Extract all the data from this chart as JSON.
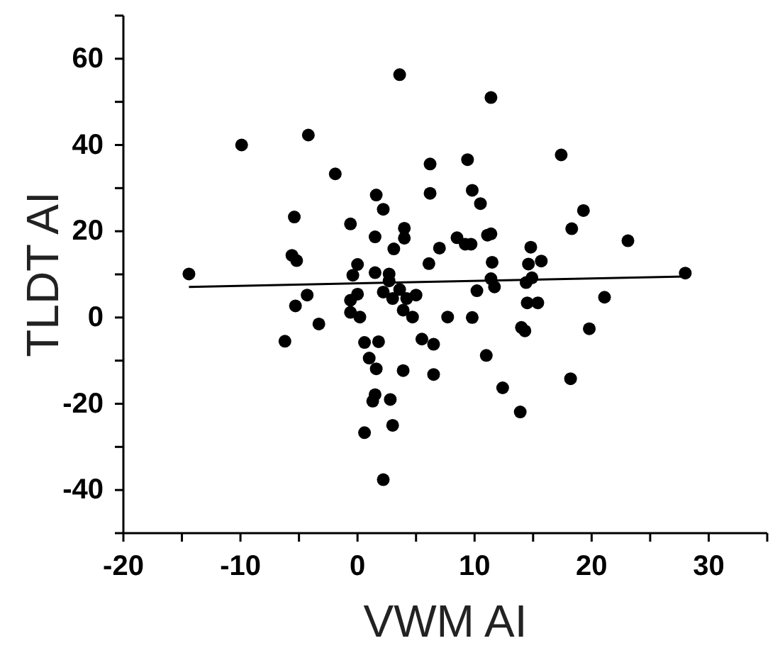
{
  "chart_data": {
    "type": "scatter",
    "xlabel": "VWM AI",
    "ylabel": "TLDT AI",
    "xlim": [
      -20,
      35
    ],
    "ylim": [
      -50,
      70
    ],
    "xticks": [
      -20,
      {
        "value": -15,
        "label": null
      },
      -10,
      {
        "value": -5,
        "label": null
      },
      0,
      {
        "value": 5,
        "label": null
      },
      10,
      {
        "value": 15,
        "label": null
      },
      20,
      {
        "value": 25,
        "label": null
      },
      30,
      {
        "value": 35,
        "label": null
      }
    ],
    "yticks": [
      {
        "value": -50,
        "label": null
      },
      -40,
      {
        "value": -30,
        "label": null
      },
      -20,
      {
        "value": -10,
        "label": null
      },
      0,
      {
        "value": 10,
        "label": null
      },
      20,
      {
        "value": 30,
        "label": null
      },
      40,
      {
        "value": 50,
        "label": null
      },
      60,
      {
        "value": 70,
        "label": null
      }
    ],
    "grid": false,
    "series": [
      {
        "marker": "circle",
        "color": "#000000",
        "x": [
          -14.4,
          -9.9,
          -4.2,
          -1.9,
          3.6,
          6.2,
          6.2,
          1.6,
          2.2,
          -5.4,
          -0.6,
          4.0,
          4.0,
          1.5,
          3.1,
          7.0,
          -5.6,
          -5.2,
          0.0,
          6.1,
          -0.4,
          1.5,
          2.7,
          2.7,
          11.4,
          9.4,
          17.4,
          9.8,
          10.5,
          19.3,
          18.3,
          8.5,
          9.2,
          9.7,
          11.1,
          11.4,
          23.1,
          14.8,
          11.5,
          14.6,
          15.7,
          11.4,
          14.9,
          14.4,
          28.0,
          0.0,
          -0.6,
          -0.6,
          0.2,
          2.2,
          3.0,
          3.6,
          4.2,
          5.0,
          3.9,
          4.7,
          7.7,
          -4.3,
          -5.3,
          -3.3,
          -6.2,
          0.6,
          1.8,
          1.0,
          1.6,
          3.9,
          5.5,
          6.5,
          6.5,
          1.5,
          1.3,
          2.8,
          3.0,
          0.6,
          2.2,
          11.7,
          10.2,
          14.5,
          15.4,
          21.1,
          9.8,
          14.0,
          14.3,
          19.8,
          11.0,
          18.2,
          12.4,
          13.9
        ],
        "values": [
          10.1,
          40.0,
          42.3,
          33.3,
          56.3,
          35.6,
          28.8,
          28.4,
          25.1,
          23.3,
          21.7,
          20.7,
          18.4,
          18.7,
          15.9,
          16.1,
          14.4,
          13.2,
          12.3,
          12.5,
          9.8,
          10.4,
          10.1,
          8.5,
          51.0,
          36.6,
          37.7,
          29.5,
          26.4,
          24.8,
          20.6,
          18.5,
          17.0,
          17.0,
          19.1,
          19.4,
          17.8,
          16.3,
          12.8,
          12.4,
          13.1,
          9.0,
          9.2,
          8.1,
          10.3,
          5.4,
          4.0,
          1.2,
          0.1,
          5.9,
          4.4,
          6.5,
          4.4,
          5.2,
          1.7,
          0.1,
          0.1,
          5.2,
          2.7,
          -1.5,
          -5.5,
          -5.8,
          -5.6,
          -9.4,
          -11.9,
          -12.3,
          -5.0,
          -6.2,
          -13.2,
          -17.9,
          -19.4,
          -19.0,
          -25.0,
          -26.7,
          -37.6,
          7.1,
          6.2,
          3.4,
          3.4,
          4.7,
          0.0,
          -2.3,
          -3.1,
          -2.6,
          -8.8,
          -14.2,
          -16.3,
          -21.9
        ]
      },
      {
        "type": "line",
        "color": "#000000",
        "x": [
          -14.4,
          28.0
        ],
        "values": [
          7.1,
          9.5
        ]
      }
    ]
  }
}
